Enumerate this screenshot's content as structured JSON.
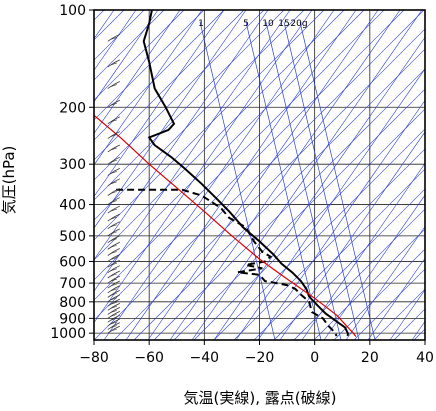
{
  "chart_data": {
    "type": "line",
    "title": "",
    "xlabel": "気温(実線), 露点(破線)",
    "ylabel": "気圧(hPa)",
    "xlim": [
      -80,
      40
    ],
    "ylim": [
      1050,
      100
    ],
    "y_scale": "log",
    "x_ticks": [
      "−80",
      "−60",
      "−40",
      "−20",
      "0",
      "20",
      "40"
    ],
    "x_tick_values": [
      -80,
      -60,
      -40,
      -20,
      0,
      20,
      40
    ],
    "y_ticks": [
      "100",
      "200",
      "300",
      "400",
      "500",
      "600",
      "700",
      "800",
      "900",
      "1000"
    ],
    "y_tick_values": [
      100,
      200,
      300,
      400,
      500,
      600,
      700,
      800,
      900,
      1000
    ],
    "mixing_ratio_labels": [
      "1",
      "5",
      "10",
      "15",
      "20g"
    ],
    "mixing_ratio_values": [
      1,
      5,
      10,
      15,
      20
    ],
    "series": [
      {
        "style": "solid",
        "color": "#000000",
        "points": [
          [
            -59,
            100
          ],
          [
            -60,
            110
          ],
          [
            -62,
            125
          ],
          [
            -60,
            145
          ],
          [
            -58,
            175
          ],
          [
            -54,
            200
          ],
          [
            -51,
            225
          ],
          [
            -53,
            235
          ],
          [
            -60,
            248
          ],
          [
            -58,
            262
          ],
          [
            -52,
            285
          ],
          [
            -47,
            310
          ],
          [
            -41,
            345
          ],
          [
            -36,
            380
          ],
          [
            -31,
            420
          ],
          [
            -26,
            470
          ],
          [
            -20,
            520
          ],
          [
            -15,
            570
          ],
          [
            -12,
            610
          ],
          [
            -8,
            650
          ],
          [
            -5,
            690
          ],
          [
            -3,
            730
          ],
          [
            -2,
            770
          ],
          [
            1,
            820
          ],
          [
            4,
            870
          ],
          [
            8,
            920
          ],
          [
            11,
            960
          ],
          [
            12,
            1000
          ],
          [
            12,
            1020
          ]
        ]
      },
      {
        "style": "dashed",
        "color": "#000000",
        "points": [
          [
            -72,
            360
          ],
          [
            -48,
            360
          ],
          [
            -41,
            375
          ],
          [
            -34,
            410
          ],
          [
            -31,
            440
          ],
          [
            -25,
            470
          ],
          [
            -22,
            520
          ],
          [
            -19,
            560
          ],
          [
            -16,
            580
          ],
          [
            -18,
            600
          ],
          [
            -25,
            615
          ],
          [
            -19,
            630
          ],
          [
            -28,
            648
          ],
          [
            -20,
            660
          ],
          [
            -18,
            690
          ],
          [
            -10,
            710
          ],
          [
            -7,
            730
          ],
          [
            -5,
            760
          ],
          [
            -2,
            800
          ],
          [
            -1,
            860
          ],
          [
            3,
            900
          ],
          [
            5,
            950
          ],
          [
            7,
            990
          ],
          [
            8,
            1020
          ]
        ]
      },
      {
        "style": "solid",
        "color": "#e00000",
        "points": [
          [
            -82,
            205
          ],
          [
            -70,
            250
          ],
          [
            -60,
            300
          ],
          [
            -50,
            355
          ],
          [
            -40,
            420
          ],
          [
            -30,
            500
          ],
          [
            -20,
            590
          ],
          [
            -10,
            680
          ],
          [
            0,
            780
          ],
          [
            8,
            880
          ],
          [
            14,
            1000
          ],
          [
            15,
            1025
          ]
        ]
      }
    ],
    "wind_barbs": "left edge, every level from 100 to 1000 hPa"
  }
}
